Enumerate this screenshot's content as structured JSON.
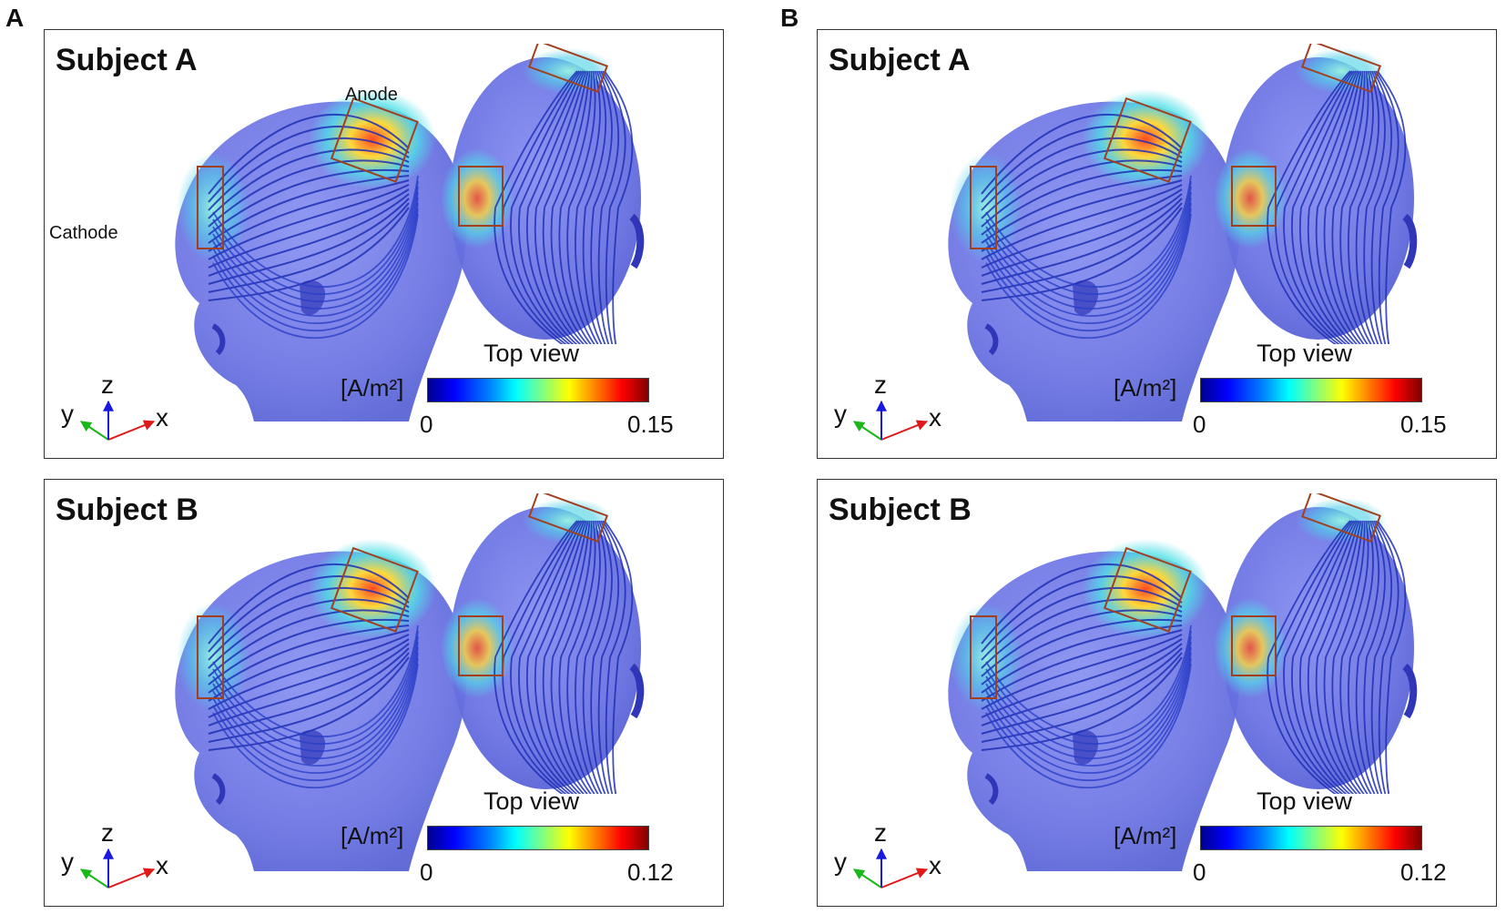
{
  "section_labels": [
    "A",
    "B"
  ],
  "panels": [
    {
      "section": "A",
      "title": "Subject A",
      "anode_label": "Anode",
      "cathode_label": "Cathode",
      "top_view_label": "Top view",
      "colorbar": {
        "unit": "[A/m²]",
        "min": "0",
        "max": "0.15"
      }
    },
    {
      "section": "A",
      "title": "Subject B",
      "top_view_label": "Top view",
      "colorbar": {
        "unit": "[A/m²]",
        "min": "0",
        "max": "0.12"
      }
    },
    {
      "section": "B",
      "title": "Subject A",
      "top_view_label": "Top view",
      "colorbar": {
        "unit": "[A/m²]",
        "min": "0",
        "max": "0.15"
      }
    },
    {
      "section": "B",
      "title": "Subject B",
      "top_view_label": "Top view",
      "colorbar": {
        "unit": "[A/m²]",
        "min": "0",
        "max": "0.12"
      }
    }
  ],
  "axes_labels": {
    "x": "x",
    "y": "y",
    "z": "z"
  },
  "colors": {
    "head_fill": "#6f78e6",
    "current_lines": "#1e2fb5",
    "hot": "#e83a1a",
    "warm": "#f1d23a",
    "cool": "#3fd3e8"
  },
  "colormap": "jet"
}
